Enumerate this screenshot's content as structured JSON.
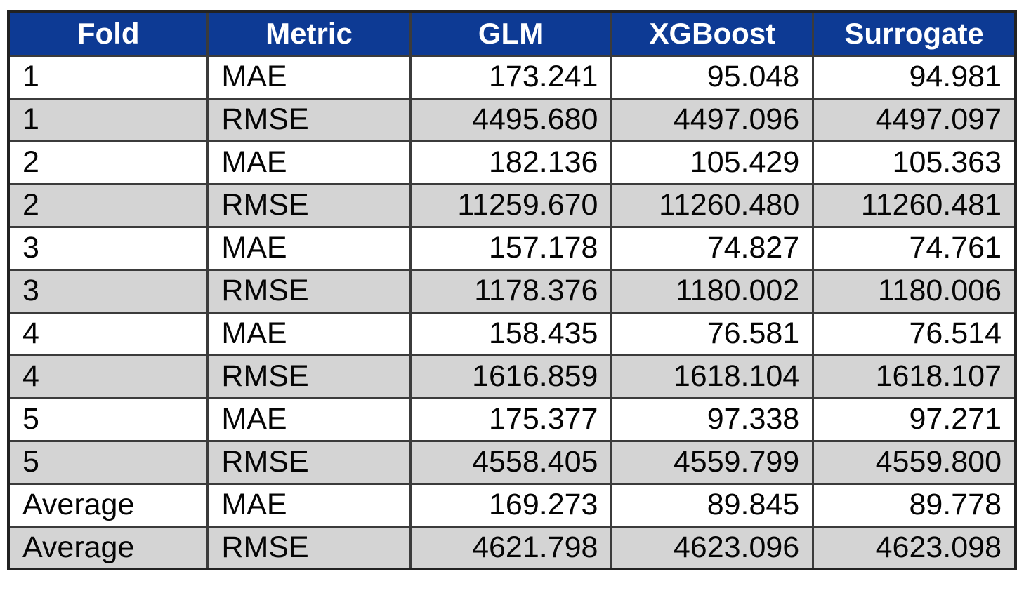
{
  "colors": {
    "header_bg": "#0d3a94",
    "header_fg": "#ffffff",
    "row_alt": "#d4d4d4",
    "row_base": "#ffffff",
    "grid_border": "#3b3b3b",
    "outer_border": "#222222",
    "cell_fg": "#050505"
  },
  "table": {
    "columns": [
      "Fold",
      "Metric",
      "GLM",
      "XGBoost",
      "Surrogate"
    ],
    "rows": [
      {
        "fold": "1",
        "metric": "MAE",
        "glm": "173.241",
        "xgboost": "95.048",
        "surrogate": "94.981"
      },
      {
        "fold": "1",
        "metric": "RMSE",
        "glm": "4495.680",
        "xgboost": "4497.096",
        "surrogate": "4497.097"
      },
      {
        "fold": "2",
        "metric": "MAE",
        "glm": "182.136",
        "xgboost": "105.429",
        "surrogate": "105.363"
      },
      {
        "fold": "2",
        "metric": "RMSE",
        "glm": "11259.670",
        "xgboost": "11260.480",
        "surrogate": "11260.481"
      },
      {
        "fold": "3",
        "metric": "MAE",
        "glm": "157.178",
        "xgboost": "74.827",
        "surrogate": "74.761"
      },
      {
        "fold": "3",
        "metric": "RMSE",
        "glm": "1178.376",
        "xgboost": "1180.002",
        "surrogate": "1180.006"
      },
      {
        "fold": "4",
        "metric": "MAE",
        "glm": "158.435",
        "xgboost": "76.581",
        "surrogate": "76.514"
      },
      {
        "fold": "4",
        "metric": "RMSE",
        "glm": "1616.859",
        "xgboost": "1618.104",
        "surrogate": "1618.107"
      },
      {
        "fold": "5",
        "metric": "MAE",
        "glm": "175.377",
        "xgboost": "97.338",
        "surrogate": "97.271"
      },
      {
        "fold": "5",
        "metric": "RMSE",
        "glm": "4558.405",
        "xgboost": "4559.799",
        "surrogate": "4559.800"
      },
      {
        "fold": "Average",
        "metric": "MAE",
        "glm": "169.273",
        "xgboost": "89.845",
        "surrogate": "89.778"
      },
      {
        "fold": "Average",
        "metric": "RMSE",
        "glm": "4621.798",
        "xgboost": "4623.096",
        "surrogate": "4623.098"
      }
    ]
  },
  "chart_data": {
    "type": "table",
    "title": "",
    "columns": [
      "Fold",
      "Metric",
      "GLM",
      "XGBoost",
      "Surrogate"
    ],
    "rows": [
      [
        "1",
        "MAE",
        173.241,
        95.048,
        94.981
      ],
      [
        "1",
        "RMSE",
        4495.68,
        4497.096,
        4497.097
      ],
      [
        "2",
        "MAE",
        182.136,
        105.429,
        105.363
      ],
      [
        "2",
        "RMSE",
        11259.67,
        11260.48,
        11260.481
      ],
      [
        "3",
        "MAE",
        157.178,
        74.827,
        74.761
      ],
      [
        "3",
        "RMSE",
        1178.376,
        1180.002,
        1180.006
      ],
      [
        "4",
        "MAE",
        158.435,
        76.581,
        76.514
      ],
      [
        "4",
        "RMSE",
        1616.859,
        1618.104,
        1618.107
      ],
      [
        "5",
        "MAE",
        175.377,
        97.338,
        97.271
      ],
      [
        "5",
        "RMSE",
        4558.405,
        4559.799,
        4559.8
      ],
      [
        "Average",
        "MAE",
        169.273,
        89.845,
        89.778
      ],
      [
        "Average",
        "RMSE",
        4621.798,
        4623.096,
        4623.098
      ]
    ],
    "layout": {
      "header_background": "#0d3a94",
      "alternating_row_background": "#d4d4d4",
      "numeric_alignment": "right",
      "text_alignment": "left",
      "header_alignment": "center"
    }
  }
}
